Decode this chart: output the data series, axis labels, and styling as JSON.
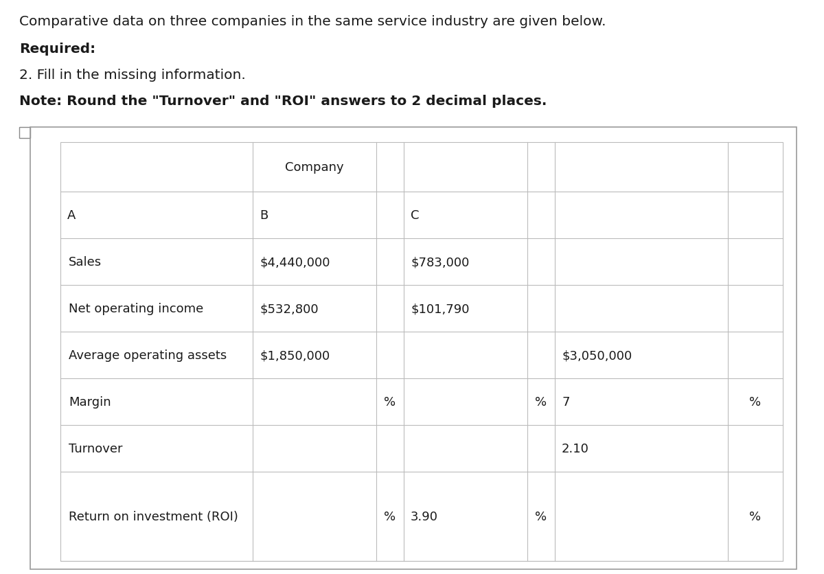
{
  "title_line1": "Comparative data on three companies in the same service industry are given below.",
  "title_line2": "Required:",
  "title_line3": "2. Fill in the missing information.",
  "title_line4": "Note: Round the \"Turnover\" and \"ROI\" answers to 2 decimal places.",
  "bg_color": "#ffffff",
  "table_border_outer": "#999999",
  "table_border_inner": "#bbbbbb",
  "text_color": "#1a1a1a",
  "font_size_title": 14.5,
  "font_size_cell": 13,
  "row_data": [
    [
      "Sales",
      "$4,440,000",
      "",
      "$783,000",
      "",
      "",
      ""
    ],
    [
      "Net operating income",
      "$532,800",
      "",
      "$101,790",
      "",
      "",
      ""
    ],
    [
      "Average operating assets",
      "$1,850,000",
      "",
      "",
      "",
      "$3,050,000",
      ""
    ],
    [
      "Margin",
      "",
      "%",
      "",
      "%",
      "7",
      "%"
    ],
    [
      "Turnover",
      "",
      "",
      "",
      "",
      "2.10",
      ""
    ],
    [
      "Return on investment (ROI)",
      "",
      "%",
      "3.90",
      "%",
      "",
      "%"
    ]
  ]
}
